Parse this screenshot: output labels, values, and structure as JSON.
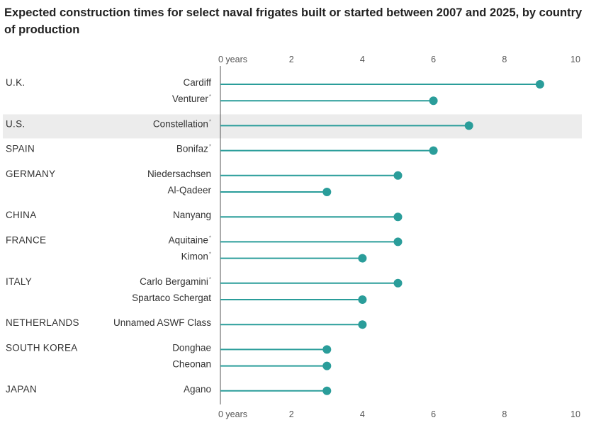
{
  "title": "Expected construction times for select naval frigates built or started between 2007 and 2025, by country of production",
  "chart_data": {
    "type": "lollipop",
    "xlabel": "years",
    "xlim": [
      0,
      10
    ],
    "ticks": [
      0,
      2,
      4,
      6,
      8,
      10
    ],
    "tick_labels": [
      "0 years",
      "2",
      "4",
      "6",
      "8",
      "10"
    ],
    "highlight_group": "U.S.",
    "colors": {
      "stem": "#2a9d9a",
      "dot": "#2a9d9a",
      "highlight": "#ececec"
    },
    "groups": [
      {
        "country": "U.K.",
        "ships": [
          {
            "name": "Cardiff",
            "asterisk": false,
            "years": 9
          },
          {
            "name": "Venturer",
            "asterisk": true,
            "years": 6
          }
        ]
      },
      {
        "country": "U.S.",
        "ships": [
          {
            "name": "Constellation",
            "asterisk": true,
            "years": 7
          }
        ]
      },
      {
        "country": "SPAIN",
        "ships": [
          {
            "name": "Bonifaz",
            "asterisk": true,
            "years": 6
          }
        ]
      },
      {
        "country": "GERMANY",
        "ships": [
          {
            "name": "Niedersachsen",
            "asterisk": false,
            "years": 5
          },
          {
            "name": "Al-Qadeer",
            "asterisk": false,
            "years": 3
          }
        ]
      },
      {
        "country": "CHINA",
        "ships": [
          {
            "name": "Nanyang",
            "asterisk": false,
            "years": 5
          }
        ]
      },
      {
        "country": "FRANCE",
        "ships": [
          {
            "name": "Aquitaine",
            "asterisk": true,
            "years": 5
          },
          {
            "name": "Kimon",
            "asterisk": true,
            "years": 4
          }
        ]
      },
      {
        "country": "ITALY",
        "ships": [
          {
            "name": "Carlo Bergamini",
            "asterisk": true,
            "years": 5
          },
          {
            "name": "Spartaco Schergat",
            "asterisk": false,
            "years": 4
          }
        ]
      },
      {
        "country": "NETHERLANDS",
        "ships": [
          {
            "name": "Unnamed ASWF Class",
            "asterisk": false,
            "years": 4
          }
        ]
      },
      {
        "country": "SOUTH KOREA",
        "ships": [
          {
            "name": "Donghae",
            "asterisk": false,
            "years": 3
          },
          {
            "name": "Cheonan",
            "asterisk": false,
            "years": 3
          }
        ]
      },
      {
        "country": "JAPAN",
        "ships": [
          {
            "name": "Agano",
            "asterisk": false,
            "years": 3
          }
        ]
      }
    ]
  }
}
